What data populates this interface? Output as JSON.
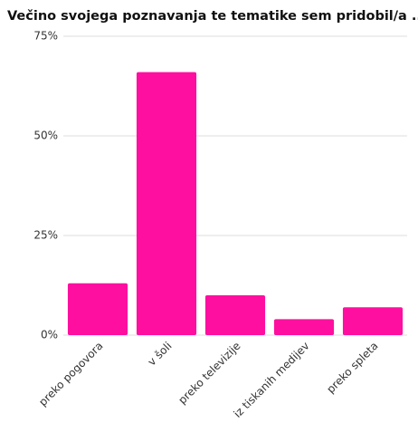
{
  "chart_data": {
    "type": "bar",
    "title": "Večino svojega poznavanja te tematike sem pridobil/a ...",
    "categories": [
      "preko pogovora",
      "v šoli",
      "preko televizije",
      "iz tiskanih medijev",
      "preko spleta"
    ],
    "values": [
      13,
      66,
      10,
      4,
      7
    ],
    "color": "#ff0fa0",
    "ylim": [
      0,
      75
    ],
    "yticks": [
      {
        "value": 0,
        "label": "0%"
      },
      {
        "value": 25,
        "label": "25%"
      },
      {
        "value": 50,
        "label": "50%"
      },
      {
        "value": 75,
        "label": "75%"
      }
    ],
    "grid": true
  }
}
